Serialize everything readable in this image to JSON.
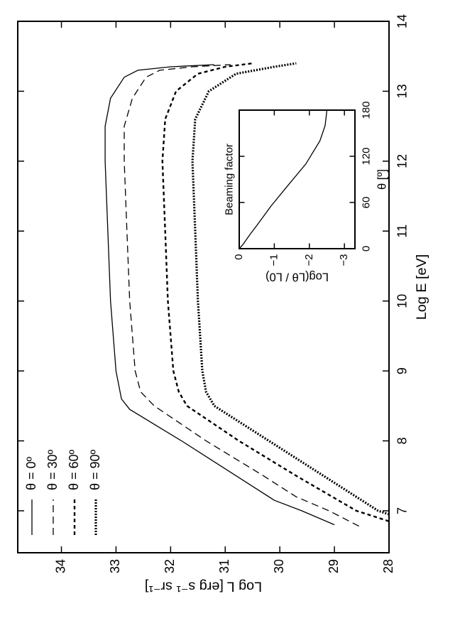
{
  "chart_data": [
    {
      "type": "line",
      "x_label": "Log E [eV]",
      "y_label": "Log L [erg s⁻¹ sr⁻¹]",
      "xlim": [
        6.4,
        14
      ],
      "ylim": [
        28,
        34.8
      ],
      "xticks": [
        7,
        8,
        9,
        10,
        11,
        12,
        13,
        14
      ],
      "yticks": [
        28,
        29,
        30,
        31,
        32,
        33,
        34
      ],
      "legend": "top-left",
      "series": [
        {
          "name": "θ = 0º",
          "color": "#000000",
          "dash": "solid",
          "x": [
            6.8,
            7.0,
            7.15,
            7.5,
            8.0,
            8.45,
            8.6,
            9.0,
            10.0,
            11.0,
            12.0,
            12.5,
            12.9,
            13.2,
            13.3,
            13.35,
            13.38
          ],
          "values": [
            29,
            29.6,
            30.1,
            30.8,
            31.8,
            32.75,
            32.9,
            33.0,
            33.1,
            33.15,
            33.2,
            33.2,
            33.1,
            32.85,
            32.6,
            32.0,
            31.2
          ]
        },
        {
          "name": "θ = 30º",
          "color": "#000000",
          "dash": "dashed",
          "x": [
            6.78,
            7.0,
            7.2,
            7.5,
            8.0,
            8.5,
            8.7,
            9.0,
            10.0,
            11.0,
            12.0,
            12.5,
            12.9,
            13.2,
            13.3,
            13.35,
            13.38
          ],
          "values": [
            28.55,
            29.1,
            29.7,
            30.3,
            31.35,
            32.3,
            32.55,
            32.65,
            32.75,
            32.8,
            32.85,
            32.85,
            32.7,
            32.45,
            32.2,
            31.6,
            30.9
          ]
        },
        {
          "name": "θ = 60º",
          "color": "#000000",
          "dash": "short-dash",
          "x": [
            6.85,
            7.0,
            7.5,
            8.0,
            8.5,
            8.7,
            9.0,
            10.0,
            11.0,
            12.0,
            12.6,
            13.0,
            13.25,
            13.35,
            13.4
          ],
          "values": [
            28,
            28.6,
            29.7,
            30.75,
            31.7,
            31.85,
            31.95,
            32.05,
            32.1,
            32.15,
            32.1,
            31.9,
            31.5,
            31.0,
            30.5
          ]
        },
        {
          "name": "θ = 90º",
          "color": "#000000",
          "dash": "dotted",
          "x": [
            6.95,
            7.0,
            7.5,
            8.0,
            8.5,
            8.7,
            9.0,
            10.0,
            11.0,
            12.0,
            12.6,
            13.0,
            13.25,
            13.35,
            13.4
          ],
          "values": [
            28,
            28.2,
            29.2,
            30.2,
            31.2,
            31.35,
            31.42,
            31.5,
            31.55,
            31.6,
            31.55,
            31.3,
            30.8,
            30.1,
            29.7
          ]
        }
      ]
    },
    {
      "type": "line",
      "title": "Beaming factor",
      "x_label": "θ [º]",
      "y_label": "Log(Lθ / L0)",
      "xlim": [
        0,
        180
      ],
      "ylim": [
        -3.3,
        0
      ],
      "xticks": [
        0,
        60,
        120,
        180
      ],
      "yticks": [
        0,
        {
          "value": -1,
          "label": "−1"
        },
        {
          "value": -2,
          "label": "−2"
        },
        {
          "value": -3,
          "label": "−3"
        }
      ],
      "series": [
        {
          "color": "#000000",
          "dash": "solid",
          "x": [
            0,
            5,
            18,
            30,
            55,
            80,
            110,
            140,
            160,
            180
          ],
          "values": [
            0,
            -0.1,
            -0.3,
            -0.5,
            -0.9,
            -1.35,
            -1.9,
            -2.3,
            -2.45,
            -2.5
          ]
        }
      ]
    }
  ]
}
